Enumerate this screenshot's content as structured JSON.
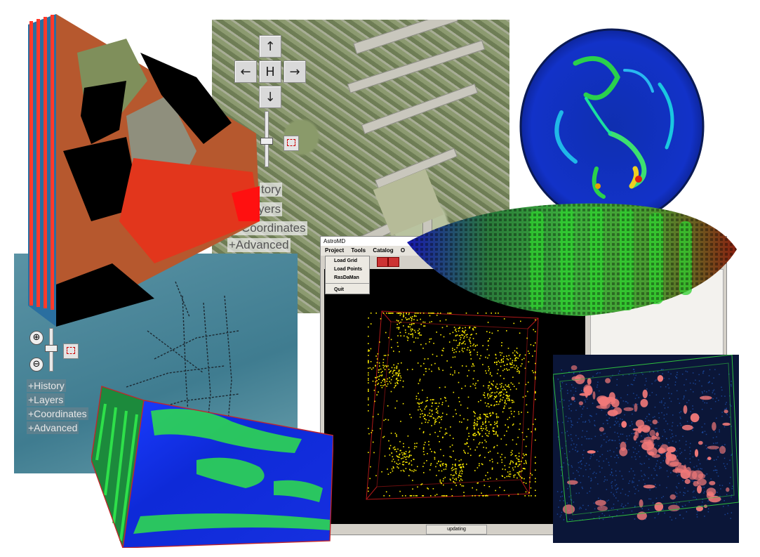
{
  "map_panel": {
    "nav": {
      "up": "↑",
      "left": "←",
      "home": "H",
      "right": "→",
      "down": "↓"
    },
    "links": [
      "+History",
      "+Layers",
      "+Coordinates",
      "+Advanced"
    ],
    "visible_links": [
      "tory",
      "yers",
      "+Coordinates",
      "+Advanced"
    ]
  },
  "sea_panel": {
    "zoom_in": "⊕",
    "zoom_out": "⊖",
    "links": [
      "+History",
      "+Layers",
      "+Coordinates",
      "+Advanced"
    ]
  },
  "astromd": {
    "title": "AstroMD",
    "menu": [
      "Project",
      "Tools",
      "Catalog",
      "O"
    ],
    "project_menu_items": [
      "Load Grid",
      "Load Points",
      "RasDaMan",
      "Quit"
    ],
    "status": "updating"
  },
  "colors": {
    "red_cube": "#e8321e",
    "particles": "#ffee00",
    "gas_blobs": "#f07878",
    "cube_edges_red": "#c0262c",
    "cube_edges_green": "#2fbf3f"
  }
}
